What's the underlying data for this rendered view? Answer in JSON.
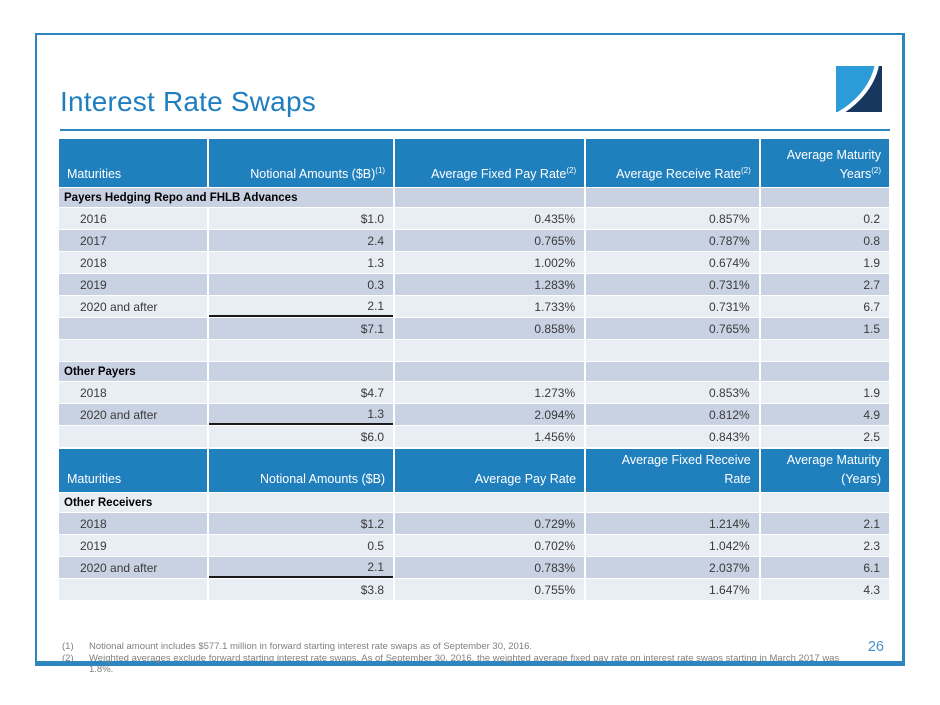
{
  "page": {
    "title": "Interest Rate Swaps",
    "page_number": "26",
    "footnotes": [
      {
        "marker": "(1)",
        "text": "Notional amount includes $577.1 million in forward starting interest rate swaps as of September 30, 2016."
      },
      {
        "marker": "(2)",
        "text": "Weighted averages exclude forward starting interest rate swaps. As of September 30, 2016, the weighted average fixed pay rate on interest rate swaps starting in March 2017 was 1.8%."
      }
    ]
  },
  "colors": {
    "accent": "#1f7ec0",
    "frame": "#2e86c1",
    "header-bg": "#2080be",
    "row-light": "#e9edf4",
    "row-dark": "#c9d2e2",
    "rule-line": "#1a1a1a",
    "footnote": "#808080",
    "page-number": "#4a90c8",
    "logo-light": "#2b9cd8",
    "logo-navy": "#17375e"
  },
  "table1": {
    "shade_start": "dark",
    "headers": [
      {
        "label": "Maturities",
        "sup": ""
      },
      {
        "label": "Notional Amounts ($B)",
        "sup": "(1)"
      },
      {
        "label": "Average Fixed Pay Rate",
        "sup": "(2)"
      },
      {
        "label": "Average Receive Rate",
        "sup": "(2)"
      },
      {
        "label": "Average Maturity Years",
        "sup": "(2)"
      }
    ],
    "rows": [
      {
        "type": "section",
        "label_span": 2,
        "cells": [
          "Payers Hedging Repo and FHLB Advances",
          "",
          "",
          ""
        ]
      },
      {
        "type": "data",
        "cells": [
          "2016",
          "$1.0",
          "0.435%",
          "0.857%",
          "0.2"
        ]
      },
      {
        "type": "data",
        "cells": [
          "2017",
          "2.4",
          "0.765%",
          "0.787%",
          "0.8"
        ]
      },
      {
        "type": "data",
        "cells": [
          "2018",
          "1.3",
          "1.002%",
          "0.674%",
          "1.9"
        ]
      },
      {
        "type": "data",
        "cells": [
          "2019",
          "0.3",
          "1.283%",
          "0.731%",
          "2.7"
        ]
      },
      {
        "type": "data",
        "underline": true,
        "cells": [
          "2020 and after",
          "2.1",
          "1.733%",
          "0.731%",
          "6.7"
        ]
      },
      {
        "type": "total",
        "cells": [
          "",
          "$7.1",
          "0.858%",
          "0.765%",
          "1.5"
        ]
      },
      {
        "type": "empty",
        "cells": [
          "",
          "",
          "",
          "",
          ""
        ]
      },
      {
        "type": "section",
        "cells": [
          "Other Payers",
          "",
          "",
          "",
          ""
        ]
      },
      {
        "type": "data",
        "cells": [
          "2018",
          "$4.7",
          "1.273%",
          "0.853%",
          "1.9"
        ]
      },
      {
        "type": "data",
        "underline": true,
        "cells": [
          "2020 and after",
          "1.3",
          "2.094%",
          "0.812%",
          "4.9"
        ]
      },
      {
        "type": "total",
        "cells": [
          "",
          "$6.0",
          "1.456%",
          "0.843%",
          "2.5"
        ]
      }
    ]
  },
  "table2": {
    "shade_start": "light",
    "headers": [
      {
        "label": "Maturities",
        "sup": ""
      },
      {
        "label": "Notional Amounts ($B)",
        "sup": ""
      },
      {
        "label": "Average Pay Rate",
        "sup": ""
      },
      {
        "label": "Average Fixed Receive Rate",
        "sup": ""
      },
      {
        "label": "Average Maturity (Years)",
        "sup": ""
      }
    ],
    "rows": [
      {
        "type": "section",
        "cells": [
          "Other Receivers",
          "",
          "",
          "",
          ""
        ]
      },
      {
        "type": "data",
        "cells": [
          "2018",
          "$1.2",
          "0.729%",
          "1.214%",
          "2.1"
        ]
      },
      {
        "type": "data",
        "cells": [
          "2019",
          "0.5",
          "0.702%",
          "1.042%",
          "2.3"
        ]
      },
      {
        "type": "data",
        "underline": true,
        "cells": [
          "2020 and after",
          "2.1",
          "0.783%",
          "2.037%",
          "6.1"
        ]
      },
      {
        "type": "total",
        "cells": [
          "",
          "$3.8",
          "0.755%",
          "1.647%",
          "4.3"
        ]
      }
    ]
  }
}
